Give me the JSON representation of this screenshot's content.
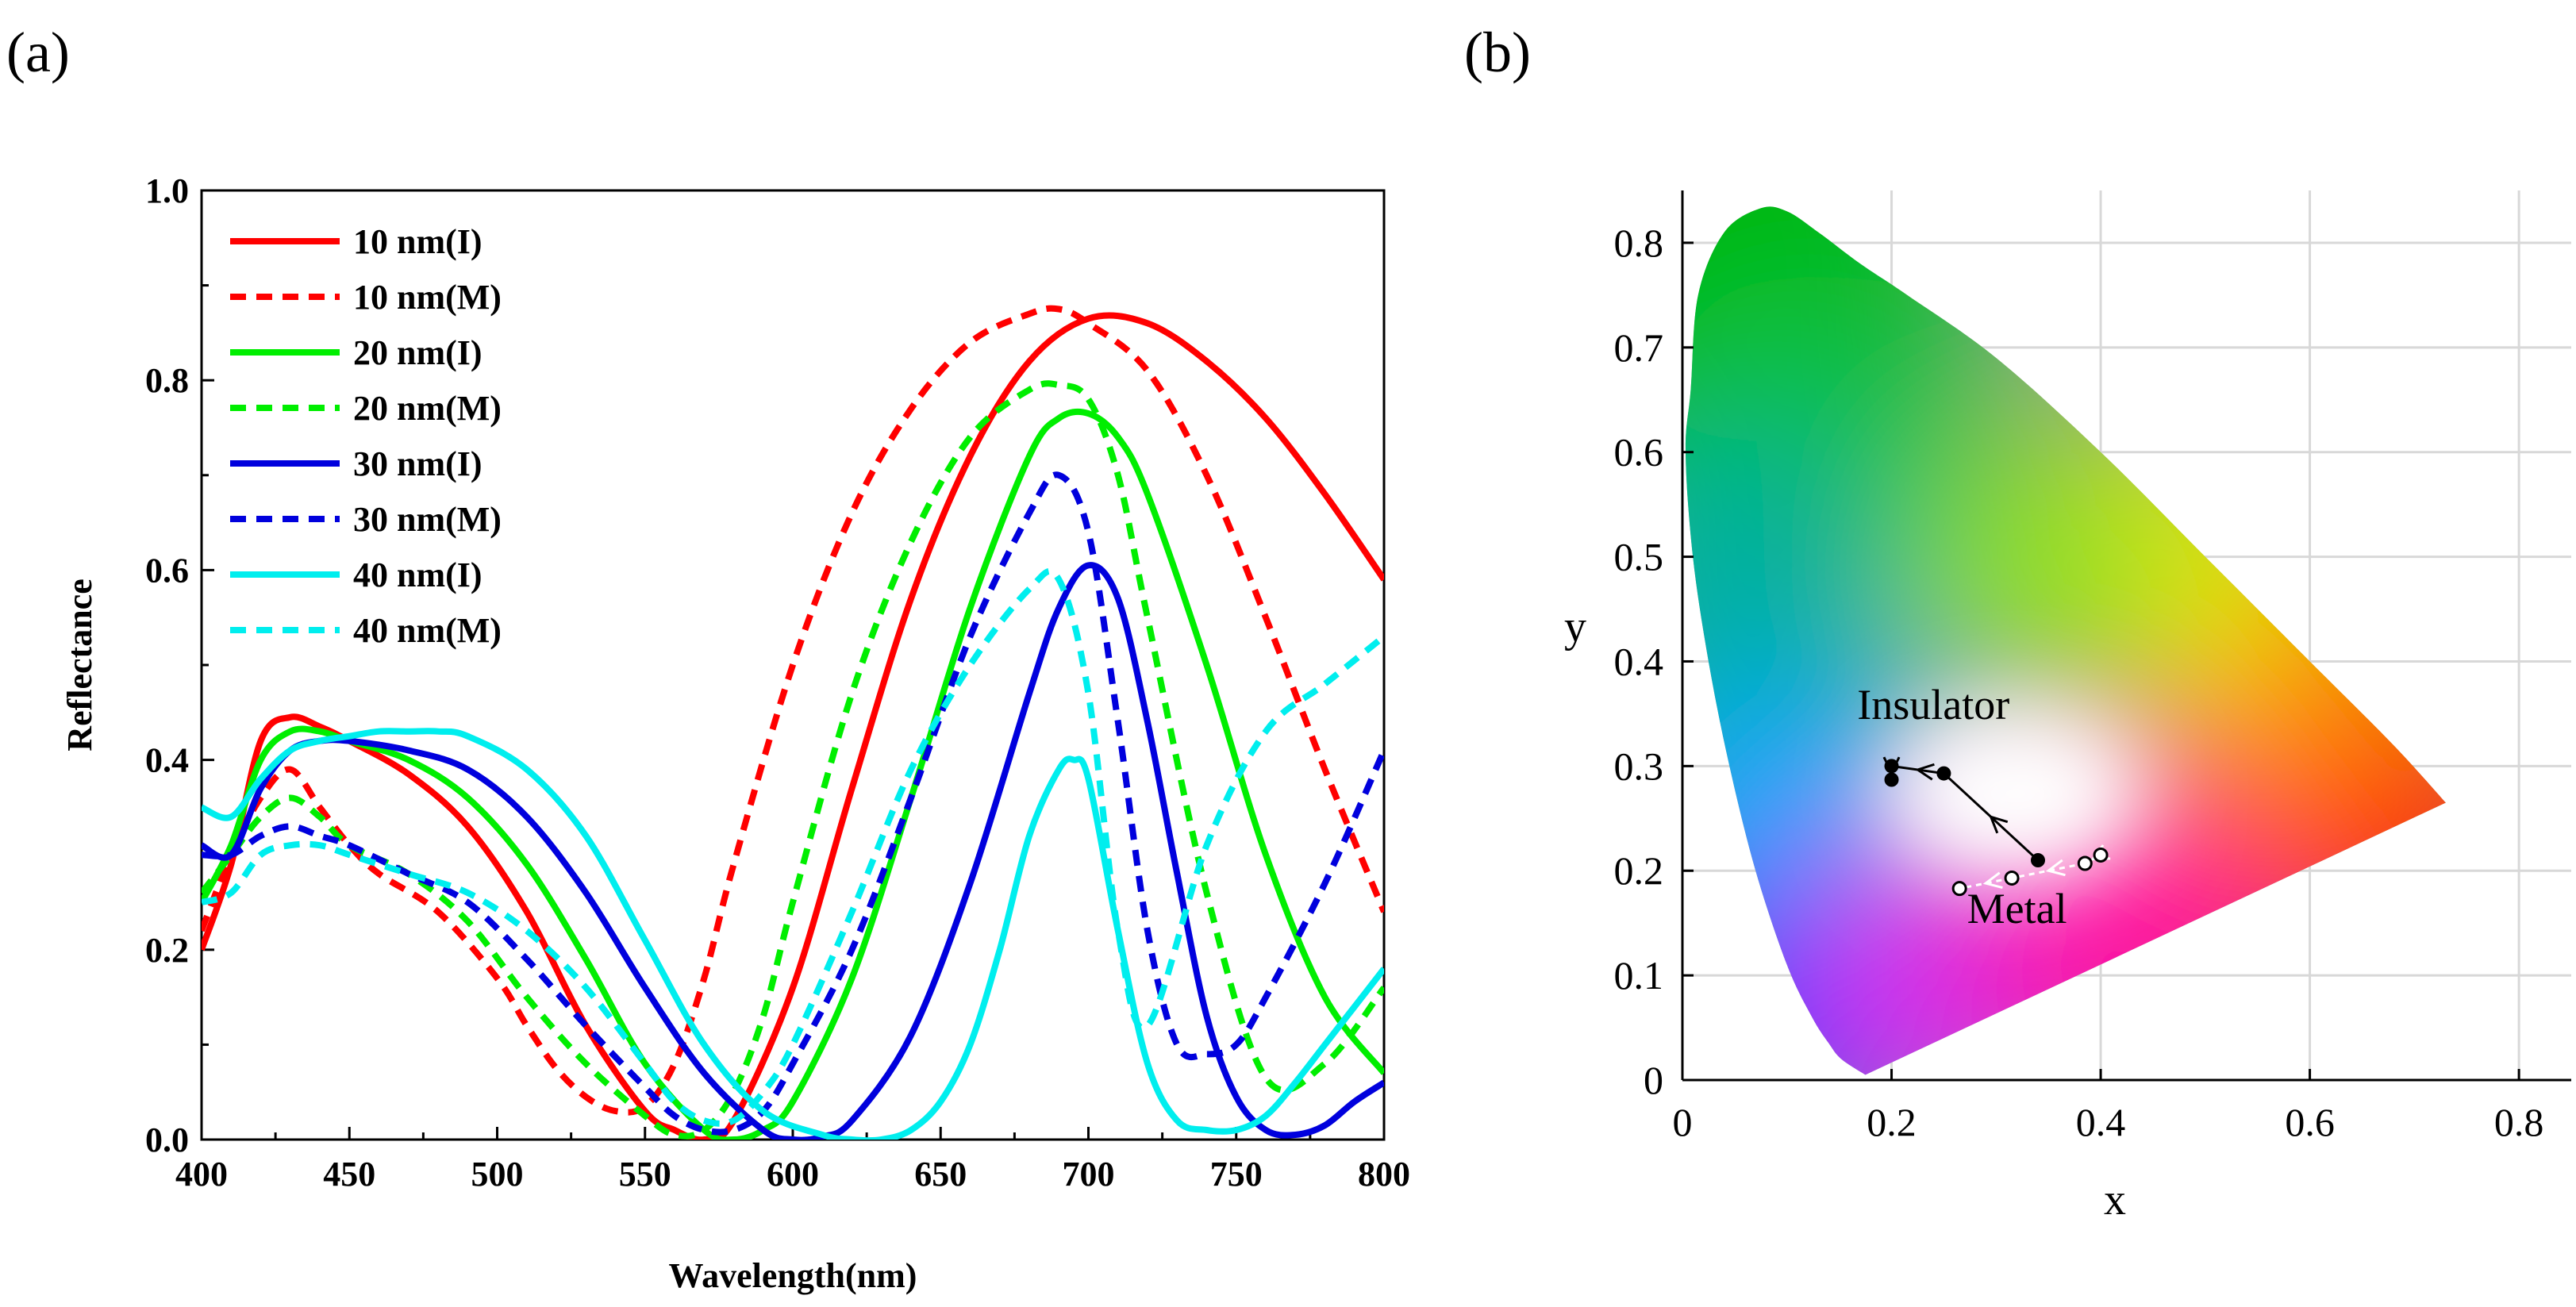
{
  "chart_data": [
    {
      "panel": "(a)",
      "type": "line",
      "xlabel": "Wavelength(nm)",
      "ylabel": "Reflectance",
      "xlim": [
        400,
        800
      ],
      "ylim": [
        0.0,
        1.0
      ],
      "xticks": [
        400,
        450,
        500,
        550,
        600,
        650,
        700,
        750,
        800
      ],
      "yticks": [
        0.0,
        0.2,
        0.4,
        0.6,
        0.8,
        1.0
      ],
      "xtick_labels": [
        "400",
        "450",
        "500",
        "550",
        "600",
        "650",
        "700",
        "750",
        "800"
      ],
      "ytick_labels": [
        "0.0",
        "0.2",
        "0.4",
        "0.6",
        "0.8",
        "1.0"
      ],
      "legend_position": "top-left",
      "series": [
        {
          "name": "10 nm(I)",
          "color": "#ff0000",
          "style": "solid",
          "x": [
            400,
            410,
            420,
            430,
            440,
            450,
            470,
            490,
            510,
            530,
            550,
            560,
            570,
            580,
            600,
            620,
            640,
            660,
            680,
            700,
            720,
            740,
            760,
            780,
            800
          ],
          "y": [
            0.2,
            0.29,
            0.42,
            0.445,
            0.435,
            0.42,
            0.385,
            0.33,
            0.24,
            0.12,
            0.03,
            0.01,
            0.0,
            0.02,
            0.16,
            0.37,
            0.57,
            0.72,
            0.82,
            0.865,
            0.86,
            0.82,
            0.76,
            0.68,
            0.59
          ]
        },
        {
          "name": "10 nm(M)",
          "color": "#ff0000",
          "style": "dashed",
          "x": [
            400,
            410,
            420,
            430,
            440,
            450,
            460,
            480,
            500,
            510,
            520,
            530,
            540,
            550,
            560,
            570,
            580,
            600,
            620,
            640,
            660,
            680,
            690,
            700,
            720,
            740,
            760,
            780,
            800
          ],
          "y": [
            0.22,
            0.3,
            0.36,
            0.39,
            0.35,
            0.31,
            0.28,
            0.24,
            0.17,
            0.12,
            0.075,
            0.045,
            0.03,
            0.035,
            0.08,
            0.17,
            0.29,
            0.5,
            0.66,
            0.77,
            0.84,
            0.87,
            0.875,
            0.86,
            0.81,
            0.7,
            0.55,
            0.39,
            0.24
          ]
        },
        {
          "name": "20 nm(I)",
          "color": "#00ee00",
          "style": "solid",
          "x": [
            400,
            410,
            420,
            430,
            440,
            450,
            470,
            490,
            510,
            530,
            550,
            570,
            580,
            590,
            600,
            620,
            640,
            660,
            680,
            690,
            700,
            710,
            720,
            740,
            760,
            780,
            800
          ],
          "y": [
            0.25,
            0.31,
            0.4,
            0.43,
            0.43,
            0.42,
            0.4,
            0.36,
            0.29,
            0.19,
            0.08,
            0.01,
            0.0,
            0.01,
            0.04,
            0.17,
            0.36,
            0.56,
            0.72,
            0.76,
            0.765,
            0.74,
            0.68,
            0.5,
            0.3,
            0.15,
            0.07
          ]
        },
        {
          "name": "20 nm(M)",
          "color": "#00ee00",
          "style": "dashed",
          "x": [
            400,
            410,
            420,
            430,
            440,
            450,
            470,
            490,
            510,
            530,
            550,
            560,
            570,
            580,
            590,
            600,
            620,
            640,
            660,
            680,
            690,
            700,
            710,
            720,
            740,
            760,
            780,
            800
          ],
          "y": [
            0.26,
            0.3,
            0.34,
            0.36,
            0.34,
            0.31,
            0.28,
            0.23,
            0.15,
            0.08,
            0.025,
            0.005,
            0.01,
            0.05,
            0.13,
            0.25,
            0.47,
            0.63,
            0.74,
            0.79,
            0.795,
            0.78,
            0.7,
            0.55,
            0.26,
            0.065,
            0.08,
            0.16
          ]
        },
        {
          "name": "30 nm(I)",
          "color": "#0000dd",
          "style": "solid",
          "x": [
            400,
            410,
            420,
            430,
            440,
            450,
            470,
            490,
            510,
            530,
            550,
            570,
            590,
            600,
            610,
            620,
            640,
            660,
            680,
            690,
            700,
            710,
            720,
            730,
            740,
            750,
            760,
            770,
            780,
            790,
            800
          ],
          "y": [
            0.31,
            0.3,
            0.37,
            0.41,
            0.42,
            0.42,
            0.41,
            0.39,
            0.34,
            0.26,
            0.16,
            0.07,
            0.01,
            0.0,
            0.003,
            0.02,
            0.11,
            0.27,
            0.47,
            0.56,
            0.605,
            0.57,
            0.44,
            0.28,
            0.13,
            0.045,
            0.01,
            0.005,
            0.015,
            0.04,
            0.06
          ]
        },
        {
          "name": "30 nm(M)",
          "color": "#0000dd",
          "style": "dashed",
          "x": [
            400,
            410,
            420,
            430,
            440,
            450,
            470,
            490,
            510,
            530,
            550,
            560,
            570,
            580,
            590,
            600,
            620,
            640,
            660,
            680,
            690,
            700,
            710,
            720,
            730,
            740,
            750,
            760,
            780,
            800
          ],
          "y": [
            0.3,
            0.3,
            0.32,
            0.33,
            0.32,
            0.31,
            0.28,
            0.25,
            0.19,
            0.12,
            0.055,
            0.025,
            0.01,
            0.01,
            0.03,
            0.08,
            0.2,
            0.36,
            0.53,
            0.66,
            0.7,
            0.64,
            0.44,
            0.22,
            0.1,
            0.09,
            0.1,
            0.15,
            0.27,
            0.41
          ]
        },
        {
          "name": "40 nm(I)",
          "color": "#00eeee",
          "style": "solid",
          "x": [
            400,
            410,
            420,
            430,
            440,
            450,
            460,
            470,
            480,
            490,
            510,
            530,
            550,
            570,
            590,
            610,
            620,
            630,
            640,
            650,
            660,
            670,
            680,
            690,
            695,
            700,
            710,
            720,
            730,
            740,
            750,
            760,
            770,
            780,
            790,
            800
          ],
          "y": [
            0.35,
            0.34,
            0.38,
            0.41,
            0.42,
            0.425,
            0.43,
            0.43,
            0.43,
            0.425,
            0.39,
            0.32,
            0.21,
            0.1,
            0.03,
            0.005,
            0.0,
            0.0,
            0.01,
            0.04,
            0.1,
            0.2,
            0.32,
            0.39,
            0.4,
            0.38,
            0.22,
            0.08,
            0.02,
            0.01,
            0.01,
            0.025,
            0.06,
            0.1,
            0.14,
            0.18
          ]
        },
        {
          "name": "40 nm(M)",
          "color": "#00eeee",
          "style": "dashed",
          "x": [
            400,
            410,
            420,
            430,
            440,
            450,
            470,
            490,
            510,
            530,
            550,
            560,
            570,
            580,
            590,
            600,
            620,
            640,
            660,
            680,
            690,
            700,
            710,
            720,
            740,
            760,
            780,
            800
          ],
          "y": [
            0.25,
            0.26,
            0.3,
            0.31,
            0.31,
            0.3,
            0.28,
            0.26,
            0.22,
            0.16,
            0.08,
            0.04,
            0.02,
            0.02,
            0.05,
            0.1,
            0.24,
            0.39,
            0.5,
            0.58,
            0.59,
            0.47,
            0.22,
            0.12,
            0.31,
            0.43,
            0.48,
            0.53
          ]
        }
      ]
    },
    {
      "panel": "(b)",
      "type": "scatter",
      "xlabel": "x",
      "ylabel": "y",
      "xlim": [
        0,
        0.85
      ],
      "ylim": [
        0,
        0.85
      ],
      "xticks": [
        0,
        0.2,
        0.4,
        0.6,
        0.8
      ],
      "yticks": [
        0,
        0.1,
        0.2,
        0.3,
        0.4,
        0.5,
        0.6,
        0.7,
        0.8
      ],
      "xtick_labels": [
        "0",
        "0.2",
        "0.4",
        "0.6",
        "0.8"
      ],
      "ytick_labels": [
        "0",
        "0.1",
        "0.2",
        "0.3",
        "0.4",
        "0.5",
        "0.6",
        "0.7",
        "0.8"
      ],
      "grid": true,
      "gamut_boundary": {
        "x": [
          0.175,
          0.152,
          0.14,
          0.124,
          0.1,
          0.07,
          0.045,
          0.025,
          0.01,
          0.003,
          0.008,
          0.015,
          0.04,
          0.075,
          0.1,
          0.13,
          0.17,
          0.215,
          0.3,
          0.4,
          0.5,
          0.6,
          0.68,
          0.73
        ],
        "y": [
          0.005,
          0.02,
          0.035,
          0.06,
          0.11,
          0.2,
          0.3,
          0.4,
          0.5,
          0.6,
          0.66,
          0.75,
          0.81,
          0.833,
          0.83,
          0.81,
          0.78,
          0.75,
          0.69,
          0.6,
          0.5,
          0.4,
          0.32,
          0.265
        ]
      },
      "series": [
        {
          "name": "Insulator",
          "color": "#000000",
          "marker": "filled",
          "x": [
            0.34,
            0.25,
            0.2,
            0.2
          ],
          "y": [
            0.21,
            0.293,
            0.3,
            0.287
          ]
        },
        {
          "name": "Metal",
          "color": "#ffffff",
          "marker": "hollow",
          "x": [
            0.4,
            0.385,
            0.315,
            0.265
          ],
          "y": [
            0.215,
            0.207,
            0.193,
            0.183
          ]
        }
      ],
      "annotations": [
        {
          "text": "Insulator",
          "x": 0.24,
          "y": 0.345
        },
        {
          "text": "Metal",
          "x": 0.32,
          "y": 0.15
        }
      ]
    }
  ]
}
